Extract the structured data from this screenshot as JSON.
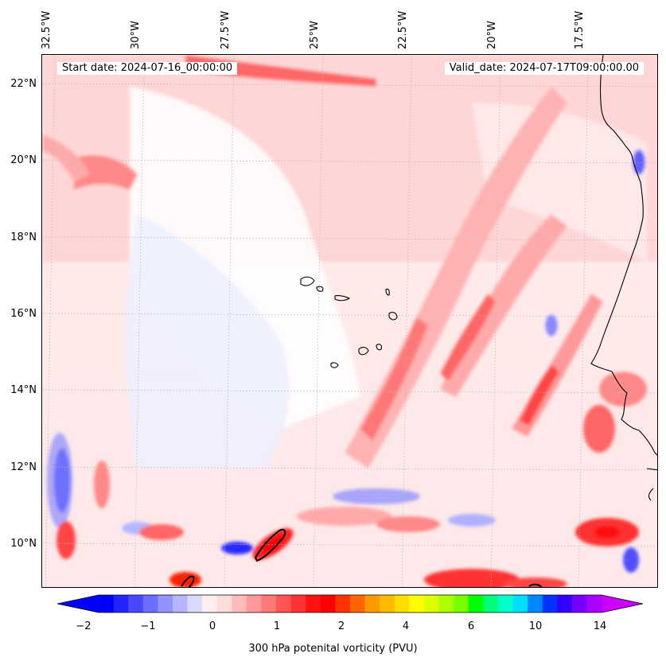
{
  "map": {
    "start_label": "Start date: 2024-07-16_00:00:00",
    "valid_label": "Valid_date: 2024-07-17T09:00:00.00",
    "lon_labels": [
      "32.5°W",
      "30°W",
      "27.5°W",
      "25°W",
      "22.5°W",
      "20°W",
      "17.5°W"
    ],
    "lat_labels": [
      "22°N",
      "20°N",
      "18°N",
      "16°N",
      "14°N",
      "12°N",
      "10°N"
    ],
    "lon_range": [
      -32.5,
      -15.2
    ],
    "lat_range": [
      8.9,
      22.8
    ],
    "field": "300 hPa potential vorticity"
  },
  "colorbar": {
    "tick_labels": [
      "−2",
      "−1",
      "0",
      "1",
      "2",
      "4",
      "6",
      "10",
      "14"
    ],
    "label": "300 hPa potenital vorticity (PVU)",
    "colors": [
      "#0000ff",
      "#2424ff",
      "#4848ff",
      "#6d6dff",
      "#9191ff",
      "#b6b6ff",
      "#dadaff",
      "#ffeeee",
      "#ffdddd",
      "#ffbbbb",
      "#ff9999",
      "#ff7777",
      "#ff5555",
      "#ff3333",
      "#ff1111",
      "#ff0000",
      "#ff3300",
      "#ff6600",
      "#ff9900",
      "#ffbb00",
      "#ffdd00",
      "#ffff00",
      "#ddff00",
      "#aaff00",
      "#77ff00",
      "#00ff00",
      "#00ff77",
      "#00ffcc",
      "#00ddff",
      "#0088ff",
      "#0033ff",
      "#3300ff",
      "#7700ff",
      "#aa00ff"
    ],
    "extend_low": "#0000ff",
    "extend_high": "#cc00ff"
  }
}
